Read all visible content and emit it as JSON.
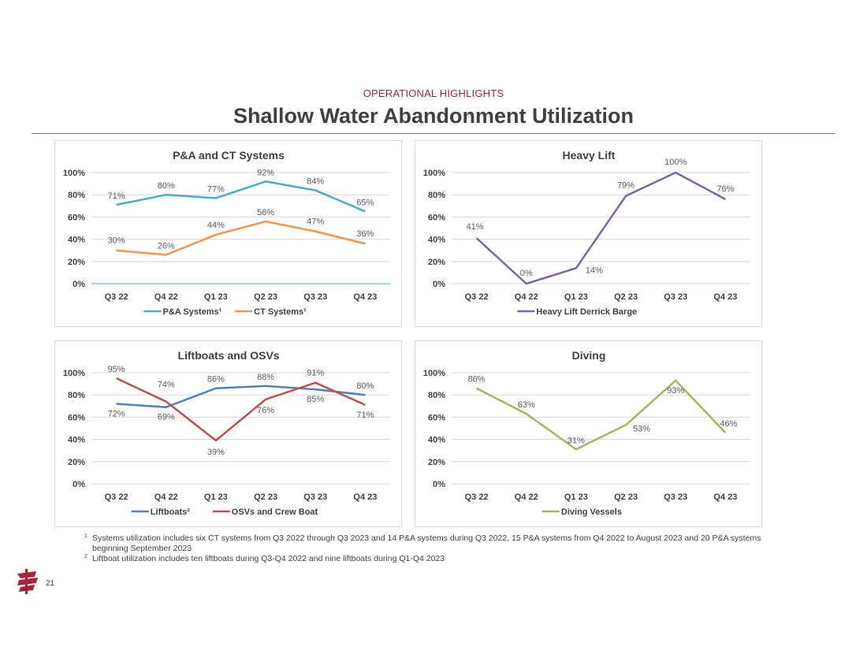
{
  "header": {
    "eyebrow": "OPERATIONAL HIGHLIGHTS",
    "title": "Shallow Water Abandonment Utilization"
  },
  "colors": {
    "accent": "#a6243a",
    "pa": "#4bacc6",
    "ct": "#f79646",
    "heavy": "#8064a2",
    "lift": "#4f81bd",
    "osv": "#c0504d",
    "diving": "#9bbb59"
  },
  "chart_data": [
    {
      "id": "pa",
      "type": "line",
      "title": "P&A and CT Systems",
      "categories": [
        "Q3 22",
        "Q4 22",
        "Q1 23",
        "Q2 23",
        "Q3 23",
        "Q4 23"
      ],
      "y_ticks": [
        "0%",
        "20%",
        "40%",
        "60%",
        "80%",
        "100%"
      ],
      "ylim": [
        0,
        100
      ],
      "series": [
        {
          "name": "P&A Systems¹",
          "color": "#4bacc6",
          "values": [
            71,
            80,
            77,
            92,
            84,
            65
          ],
          "labels": [
            "71%",
            "80%",
            "77%",
            "92%",
            "84%",
            "65%"
          ]
        },
        {
          "name": "CT Systems¹",
          "color": "#f79646",
          "values": [
            30,
            26,
            44,
            56,
            47,
            36
          ],
          "labels": [
            "30%",
            "26%",
            "44%",
            "56%",
            "47%",
            "36%"
          ]
        }
      ]
    },
    {
      "id": "heavy",
      "type": "line",
      "title": "Heavy Lift",
      "categories": [
        "Q3 22",
        "Q4 22",
        "Q1 23",
        "Q2 23",
        "Q3 23",
        "Q4 23"
      ],
      "y_ticks": [
        "0%",
        "20%",
        "40%",
        "60%",
        "80%",
        "100%"
      ],
      "ylim": [
        0,
        100
      ],
      "series": [
        {
          "name": "Heavy Lift Derrick Barge",
          "color": "#8064a2",
          "values": [
            41,
            0,
            14,
            79,
            100,
            76
          ],
          "labels": [
            "41%",
            "0%",
            "14%",
            "79%",
            "100%",
            "76%"
          ]
        }
      ]
    },
    {
      "id": "lift",
      "type": "line",
      "title": "Liftboats and OSVs",
      "categories": [
        "Q3 22",
        "Q4 22",
        "Q1 23",
        "Q2 23",
        "Q3 23",
        "Q4 23"
      ],
      "y_ticks": [
        "0%",
        "20%",
        "40%",
        "60%",
        "80%",
        "100%"
      ],
      "ylim": [
        0,
        100
      ],
      "series": [
        {
          "name": "Liftboats²",
          "color": "#4f81bd",
          "values": [
            72,
            69,
            86,
            88,
            85,
            80
          ],
          "labels": [
            "72%",
            "69%",
            "86%",
            "88%",
            "85%",
            "80%"
          ]
        },
        {
          "name": "OSVs and Crew Boat",
          "color": "#c0504d",
          "values": [
            95,
            74,
            39,
            76,
            91,
            71
          ],
          "labels": [
            "95%",
            "74%",
            "39%",
            "76%",
            "91%",
            "71%"
          ]
        }
      ]
    },
    {
      "id": "diving",
      "type": "line",
      "title": "Diving",
      "categories": [
        "Q3 22",
        "Q4 22",
        "Q1 23",
        "Q2 23",
        "Q3 23",
        "Q4 23"
      ],
      "y_ticks": [
        "0%",
        "20%",
        "40%",
        "60%",
        "80%",
        "100%"
      ],
      "ylim": [
        0,
        100
      ],
      "series": [
        {
          "name": "Diving Vessels",
          "color": "#9bbb59",
          "values": [
            86,
            63,
            31,
            53,
            93,
            46
          ],
          "labels": [
            "86%",
            "63%",
            "31%",
            "53%",
            "93%",
            "46%"
          ]
        }
      ]
    }
  ],
  "footnotes": {
    "fn1_mark": "1",
    "fn1_text": "Systems utilization includes six CT systems from Q3 2022 through Q3 2023 and 14 P&A systems during Q3 2022, 15 P&A systems from Q4 2022 to August 2023 and 20 P&A systems beginning September 2023",
    "fn2_mark": "2",
    "fn2_text": "Liftboat utilization includes ten liftboats during Q3-Q4 2022 and nine liftboats during Q1-Q4 2023"
  },
  "page_number": "21",
  "logo_icon": "company-logo-icon"
}
